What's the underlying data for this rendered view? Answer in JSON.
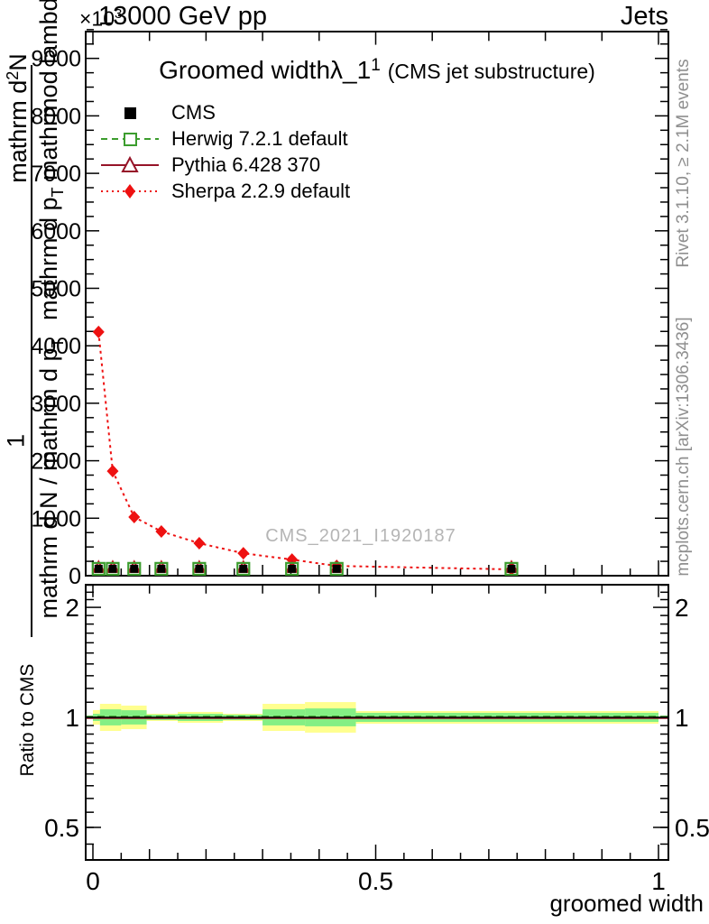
{
  "header": {
    "left": "13000 GeV pp",
    "right": "Jets",
    "multiplier": "×10",
    "multiplier_exp": "3"
  },
  "title": {
    "main": "Groomed width",
    "math": "λ_1",
    "sup": "1",
    "paren": "(CMS jet substructure)"
  },
  "legend": [
    {
      "id": "cms",
      "label": "CMS"
    },
    {
      "id": "herwig",
      "label": "Herwig 7.2.1 default"
    },
    {
      "id": "pythia",
      "label": "Pythia 6.428 370"
    },
    {
      "id": "sherpa",
      "label": "Sherpa 2.2.9 default"
    }
  ],
  "watermark": "CMS_2021_I1920187",
  "side_notes": {
    "top": "Rivet 3.1.10, ≥ 2.1M events",
    "bottom": "mcplots.cern.ch [arXiv:1306.3436]"
  },
  "ylabel": {
    "outer_num": "mathrm d",
    "outer_num_sup": "2",
    "outer_num_tail": "N",
    "outer_one": "1",
    "den_upper": "mathrm d p",
    "den_upper_sub": "T",
    "den_upper_tail": " mathrmod lambda",
    "den_lower": "mathrm d N / mathrm d p",
    "den_lower_sub": "T"
  },
  "ratio_label": "Ratio to CMS",
  "xlabel": "groomed width",
  "colors": {
    "cms": "#000000",
    "herwig": "#3c9d2e",
    "pythia": "#961428",
    "sherpa": "#ee1111",
    "band_yellow": "#ffff8f",
    "band_green": "#84ef84",
    "frame": "#000000"
  },
  "chart_data": {
    "type": "line",
    "title": "Groomed width λ_1¹ (CMS jet substructure)",
    "xlabel": "groomed width",
    "xlim": [
      -0.013,
      1.018
    ],
    "x_major_ticks": [
      0,
      0.5,
      1
    ],
    "x_major_labels": [
      "0",
      "0.5",
      "1"
    ],
    "x_medium_step": 0.1,
    "x_minor_step": 0.05,
    "main_panel": {
      "ylabel": "1/(dN/dp_T) d2N / dp_T dlambda (mangled LaTeX as rendered)",
      "ylim": [
        0,
        9500
      ],
      "y_unit_multiplier": "×10³",
      "y_major_step": 1000,
      "y_minor_step": 250,
      "y_tick_labels": [
        "0",
        "1000",
        "2000",
        "3000",
        "4000",
        "5000",
        "6000",
        "7000",
        "8000",
        "9000"
      ],
      "series": [
        {
          "name": "CMS",
          "style": "black-filled-square",
          "x": [
            0.01,
            0.035,
            0.073,
            0.121,
            0.188,
            0.266,
            0.352,
            0.431,
            0.74
          ],
          "y": [
            120,
            120,
            120,
            120,
            120,
            120,
            120,
            120,
            120
          ]
        },
        {
          "name": "Herwig 7.2.1 default",
          "style": "green-dashed-open-square",
          "x": [
            0.01,
            0.035,
            0.073,
            0.121,
            0.188,
            0.266,
            0.352,
            0.431,
            0.74
          ],
          "y": [
            120,
            120,
            120,
            120,
            120,
            120,
            120,
            120,
            120
          ]
        },
        {
          "name": "Pythia 6.428 370",
          "style": "darkred-solid-open-triangle",
          "x": [
            0.01,
            0.035,
            0.073,
            0.121,
            0.188,
            0.266,
            0.352,
            0.431,
            0.74
          ],
          "y": [
            120,
            120,
            120,
            120,
            120,
            120,
            120,
            120,
            120
          ]
        },
        {
          "name": "Sherpa 2.2.9 default",
          "style": "red-dotted-filled-diamond",
          "x": [
            0.01,
            0.035,
            0.073,
            0.121,
            0.188,
            0.266,
            0.352,
            0.431,
            0.74
          ],
          "y": [
            4240,
            1820,
            1020,
            770,
            565,
            390,
            280,
            170,
            110
          ]
        }
      ],
      "note": "CMS, Herwig and Pythia points sit at ~0 on this scale (markers clustered on the x-axis)"
    },
    "ratio_panel": {
      "ylabel": "Ratio to CMS",
      "yscale": "log",
      "ylim": [
        0.41,
        2.32
      ],
      "y_major_ticks": [
        0.5,
        1,
        2
      ],
      "y_major_labels": [
        "0.5",
        "1",
        "2"
      ],
      "reference_value": 1.0,
      "bands": {
        "bin_edges": [
          0,
          0.0125,
          0.05,
          0.095,
          0.15,
          0.23,
          0.3,
          0.375,
          0.465,
          1.0
        ],
        "yellow_err": [
          0.047,
          0.089,
          0.077,
          0.023,
          0.035,
          0.023,
          0.089,
          0.101,
          0.041
        ],
        "green_err": [
          0.023,
          0.052,
          0.046,
          0.017,
          0.023,
          0.017,
          0.052,
          0.058,
          0.029
        ]
      }
    }
  }
}
